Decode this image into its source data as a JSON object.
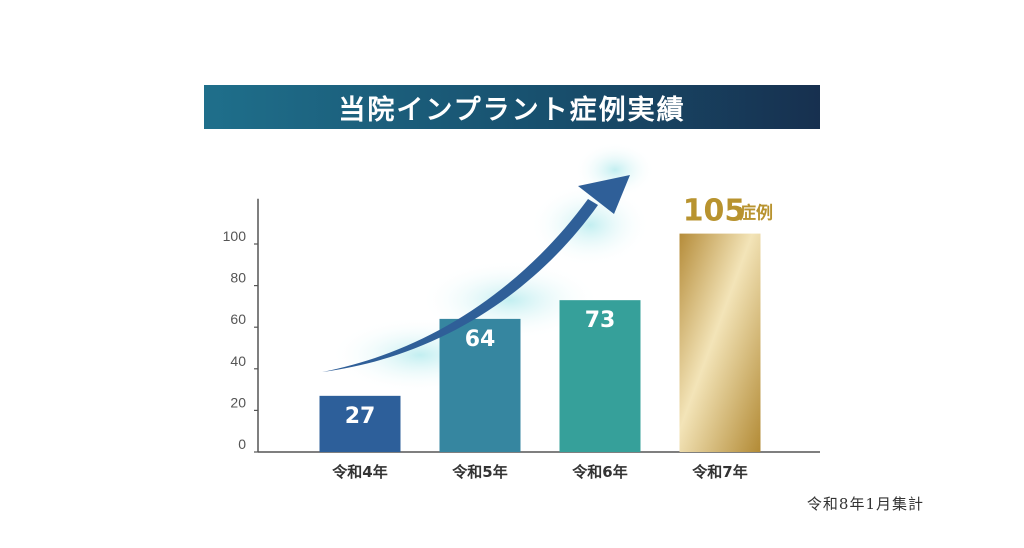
{
  "title": "当院インプラント症例実績",
  "footnote": "令和8年1月集計",
  "colors": {
    "title_bg_start": "#1f6f8b",
    "title_bg_end": "#17304f",
    "bar_1": "#2d5f9a",
    "bar_2": "#3686a0",
    "bar_3": "#36a09a",
    "bar_4_gold": "#c9a655",
    "highlight_label": "#b8932f",
    "arrow": "#2f5f98"
  },
  "highlight_unit": "症例",
  "chart_data": {
    "type": "bar",
    "categories": [
      "令和4年",
      "令和5年",
      "令和6年",
      "令和7年"
    ],
    "values": [
      27,
      64,
      73,
      105
    ],
    "value_labels": [
      "27",
      "64",
      "73",
      "105"
    ],
    "ylim": [
      0,
      115
    ],
    "yticks": [
      0,
      20,
      40,
      60,
      80,
      100
    ],
    "grid": false,
    "annotation": "upward trend arrow over bars"
  }
}
